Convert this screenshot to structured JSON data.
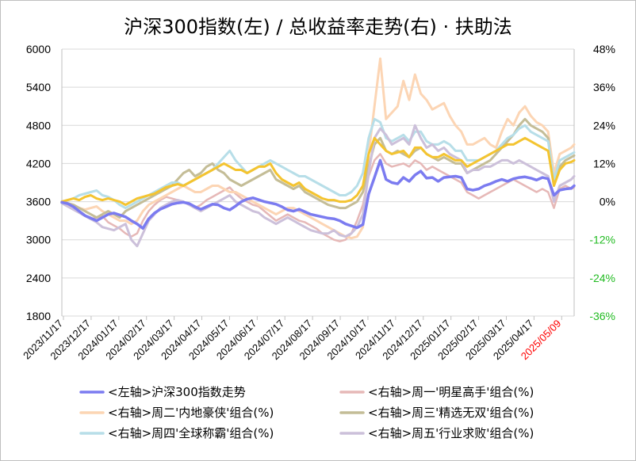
{
  "chart_data": {
    "type": "line",
    "title": "沪深300指数(左)  /  总收益率走势(右) · 扶助法",
    "x_ticks": [
      "2023/11/17",
      "2023/12/17",
      "2024/01/17",
      "2024/02/17",
      "2024/03/17",
      "2024/04/17",
      "2024/05/17",
      "2024/06/17",
      "2024/07/17",
      "2024/08/17",
      "2024/09/17",
      "2024/10/17",
      "2024/11/17",
      "2024/12/17",
      "2025/01/17",
      "2025/02/17",
      "2025/03/17",
      "2025/04/17",
      "2025/05/09"
    ],
    "highlight_tick": "2025/05/09",
    "y_left": {
      "ticks": [
        6000,
        5400,
        4800,
        4200,
        3600,
        3000,
        2400,
        1800
      ],
      "ylim": [
        1800,
        6000
      ]
    },
    "y_right": {
      "ticks": [
        {
          "label": "48%",
          "value": 48,
          "negative": false
        },
        {
          "label": "36%",
          "value": 36,
          "negative": false
        },
        {
          "label": "24%",
          "value": 24,
          "negative": false
        },
        {
          "label": "12%",
          "value": 12,
          "negative": false
        },
        {
          "label": "0%",
          "value": 0,
          "negative": false
        },
        {
          "label": "-12%",
          "value": -12,
          "negative": true
        },
        {
          "label": "-24%",
          "value": -24,
          "negative": true
        },
        {
          "label": "-36%",
          "value": -36,
          "negative": true
        }
      ],
      "ylim": [
        -36,
        48
      ]
    },
    "grid": "horizontal",
    "legend_position": "bottom",
    "x": [
      0,
      2,
      4,
      6,
      8,
      10,
      12,
      14,
      16,
      18,
      20,
      22,
      24,
      26,
      28,
      30,
      32,
      34,
      36,
      38,
      40,
      42,
      44,
      46,
      48,
      50,
      52,
      54,
      56,
      58,
      60,
      62,
      64,
      66,
      68,
      70,
      72,
      74,
      76,
      78,
      80,
      82,
      84,
      86,
      88,
      90,
      92,
      94,
      96,
      98,
      100,
      102,
      104,
      106,
      108,
      110,
      112,
      114,
      116,
      118,
      120,
      122,
      124,
      126,
      128,
      130,
      132,
      134,
      136,
      138,
      140,
      142,
      144,
      146,
      148,
      150,
      152,
      154,
      156,
      158,
      160,
      162,
      164,
      166,
      168,
      170,
      172,
      174,
      176,
      177
    ],
    "series": [
      {
        "name": "<左轴>沪深300指数走势",
        "axis": "left",
        "color": "#7b7bf0",
        "width": 3.5,
        "values": [
          3590,
          3570,
          3520,
          3450,
          3380,
          3340,
          3300,
          3350,
          3400,
          3420,
          3390,
          3360,
          3300,
          3250,
          3180,
          3330,
          3420,
          3480,
          3520,
          3560,
          3580,
          3590,
          3570,
          3520,
          3480,
          3520,
          3560,
          3550,
          3500,
          3470,
          3530,
          3600,
          3640,
          3660,
          3630,
          3600,
          3580,
          3560,
          3520,
          3470,
          3450,
          3480,
          3440,
          3400,
          3380,
          3360,
          3340,
          3330,
          3300,
          3250,
          3220,
          3190,
          3240,
          3720,
          3980,
          4250,
          3950,
          3900,
          3880,
          3980,
          3920,
          4020,
          4080,
          3970,
          3980,
          3920,
          3980,
          3990,
          4000,
          3980,
          3800,
          3780,
          3800,
          3850,
          3880,
          3920,
          3950,
          3920,
          3960,
          3980,
          3990,
          3970,
          3940,
          3980,
          3960,
          3700,
          3780,
          3800,
          3810,
          3850
        ]
      },
      {
        "name": "<右轴>周一'明星高手'组合(%)",
        "axis": "right",
        "color": "#e6b8b7",
        "width": 2.5,
        "values": [
          0,
          -1.5,
          -2.5,
          -3.5,
          -4.5,
          -5.5,
          -5.0,
          -4.5,
          -6.5,
          -7.5,
          -8.5,
          -10,
          -11,
          -10,
          -6,
          -3,
          -1,
          0.5,
          1.5,
          1.0,
          0.5,
          0,
          -1,
          -2,
          -1,
          0.5,
          1.5,
          2.5,
          3.5,
          4.5,
          2.5,
          1.0,
          0,
          -1,
          -1.5,
          -3,
          -4.5,
          -6,
          -5,
          -4,
          -5,
          -6,
          -6.5,
          -7.5,
          -8.5,
          -10,
          -11,
          -12,
          -12.5,
          -12,
          -10,
          -6,
          -1,
          8,
          13,
          15,
          12,
          11,
          11.5,
          12,
          11,
          13,
          12,
          10,
          11,
          10,
          9,
          8,
          7,
          6,
          3,
          2,
          1,
          2,
          3,
          4,
          5,
          6,
          7,
          6,
          5,
          4,
          3,
          4,
          3,
          -2,
          4,
          5,
          4,
          4.5
        ]
      },
      {
        "name": "<右轴>周二'内地豪侠'组合(%)",
        "axis": "right",
        "color": "#fcd5b4",
        "width": 3,
        "values": [
          0,
          -1,
          -2,
          -2,
          -2.5,
          -2,
          -1.5,
          -3,
          -4,
          -5,
          -6,
          -6,
          -7,
          -6,
          -3,
          -1,
          0,
          1,
          2,
          3,
          4,
          5,
          4,
          3,
          3,
          4,
          5,
          5,
          4,
          3,
          3,
          2,
          1,
          0,
          -1,
          -2,
          -3,
          -4,
          -3,
          -2,
          -2,
          -3,
          -4,
          -5,
          -6,
          -7,
          -8,
          -9,
          -10,
          -11,
          -11.5,
          -11,
          -8,
          15,
          30,
          45,
          26,
          28,
          30,
          38,
          32,
          40,
          34,
          32,
          29,
          30,
          31,
          27,
          24,
          22,
          18,
          18,
          19,
          20,
          18,
          17,
          22,
          26,
          24,
          28,
          30,
          27,
          25,
          24,
          22,
          9,
          15,
          16,
          17,
          18
        ]
      },
      {
        "name": "<右轴>周三'精选无双'组合(%)",
        "axis": "right",
        "color": "#c4bd97",
        "width": 3,
        "values": [
          0,
          -0.5,
          -1,
          -2,
          -3,
          -4,
          -5,
          -4,
          -3,
          -4,
          -5,
          -3,
          -2,
          -1,
          0,
          1,
          2,
          3,
          4,
          5,
          7,
          9,
          10,
          8,
          9,
          11,
          12,
          10,
          9,
          7,
          6,
          5,
          6,
          7,
          8,
          9,
          10,
          7,
          6,
          5,
          4,
          5,
          3,
          2,
          1,
          0,
          -1,
          -1.5,
          -2,
          -2,
          -1,
          0,
          3,
          11,
          18,
          20,
          16,
          15,
          16,
          15,
          14,
          16,
          17,
          15,
          14,
          13,
          14,
          13,
          12,
          12,
          9,
          10,
          11,
          12,
          13,
          15,
          17,
          19,
          21,
          24,
          26,
          24,
          23,
          22,
          20,
          5,
          11,
          13,
          14,
          14.5
        ]
      },
      {
        "name": "<右轴>周四'全球称霸'组合(%)",
        "axis": "right",
        "color": "#b7dee8",
        "width": 3,
        "values": [
          0,
          0.5,
          1,
          2,
          2.5,
          3,
          3.5,
          2,
          1.5,
          0.5,
          -1,
          -2,
          -1,
          0,
          1,
          2,
          3,
          4,
          5,
          6,
          6,
          5,
          6,
          7,
          8,
          9,
          10,
          12,
          14,
          16,
          13,
          11,
          9,
          10,
          11,
          12,
          13,
          12,
          11,
          10,
          9,
          8,
          8,
          7,
          6,
          5,
          4,
          3,
          2,
          2,
          3,
          5,
          9,
          20,
          26,
          25,
          20,
          19,
          20,
          21,
          19,
          22,
          22,
          19,
          18,
          18,
          19,
          18,
          16,
          16,
          13,
          13,
          13,
          14,
          15,
          16,
          18,
          20,
          21,
          23,
          24,
          22,
          21,
          20,
          19,
          7,
          13,
          14,
          15,
          15.5
        ]
      },
      {
        "name": "<右轴>周五'行业求败'组合(%)",
        "axis": "right",
        "color": "#ccc0da",
        "width": 3,
        "values": [
          -0.5,
          -1.5,
          -2.5,
          -3.5,
          -4.5,
          -5.5,
          -6.5,
          -8,
          -8.5,
          -9,
          -8,
          -7,
          -12,
          -14,
          -10,
          -6,
          -4,
          -2,
          -1,
          0,
          0.5,
          0,
          -1,
          -2,
          -3,
          -2,
          -1,
          0,
          1,
          2,
          0,
          -1,
          -2,
          -3,
          -3.5,
          -5,
          -6,
          -7,
          -6,
          -5,
          -6,
          -7,
          -8,
          -9,
          -9.5,
          -10,
          -10,
          -9,
          -10.5,
          -11,
          -10,
          -8,
          -4,
          9,
          20,
          23,
          21,
          18,
          19,
          20,
          18,
          24,
          20,
          17,
          18,
          16,
          17,
          15,
          14,
          13,
          9,
          10,
          10,
          11,
          11,
          12,
          13,
          13,
          12,
          13,
          12,
          11,
          10,
          9,
          8,
          0,
          5,
          6,
          7,
          8
        ]
      },
      {
        "name": "",
        "axis": "right",
        "color": "#f4c430",
        "width": 3,
        "values": [
          0,
          0.5,
          1,
          0.5,
          1.5,
          2,
          1,
          0.5,
          1,
          0.5,
          0,
          -1,
          0,
          1,
          1.5,
          2,
          2.5,
          3.5,
          4.5,
          5,
          5.5,
          5,
          6,
          7,
          8,
          9,
          10,
          11,
          12,
          11,
          10,
          10,
          9,
          10,
          11,
          11,
          12,
          9,
          7,
          6,
          5,
          6,
          4,
          3,
          2,
          1,
          0.5,
          0.5,
          0,
          0,
          0.5,
          2,
          5,
          15,
          20,
          18,
          16,
          15,
          15.5,
          16,
          14,
          17,
          17,
          15,
          14,
          14,
          15,
          14,
          13,
          13,
          11,
          12,
          13,
          14,
          15,
          16,
          17,
          18,
          18,
          19,
          20,
          19,
          18,
          17,
          16,
          5,
          10,
          12,
          12.5,
          13
        ]
      }
    ],
    "legend": [
      {
        "label": "<左轴>沪深300指数走势",
        "color": "#7b7bf0"
      },
      {
        "label": "<右轴>周一'明星高手'组合(%)",
        "color": "#e6b8b7"
      },
      {
        "label": "<右轴>周二'内地豪侠'组合(%)",
        "color": "#fcd5b4"
      },
      {
        "label": "<右轴>周三'精选无双'组合(%)",
        "color": "#c4bd97"
      },
      {
        "label": "<右轴>周四'全球称霸'组合(%)",
        "color": "#b7dee8"
      },
      {
        "label": "<右轴>周五'行业求败'组合(%)",
        "color": "#ccc0da"
      }
    ],
    "colors": {
      "negative_tick": "#22bb22",
      "highlight_tick": "#ff0000",
      "grid": "#d9d9d9"
    }
  }
}
